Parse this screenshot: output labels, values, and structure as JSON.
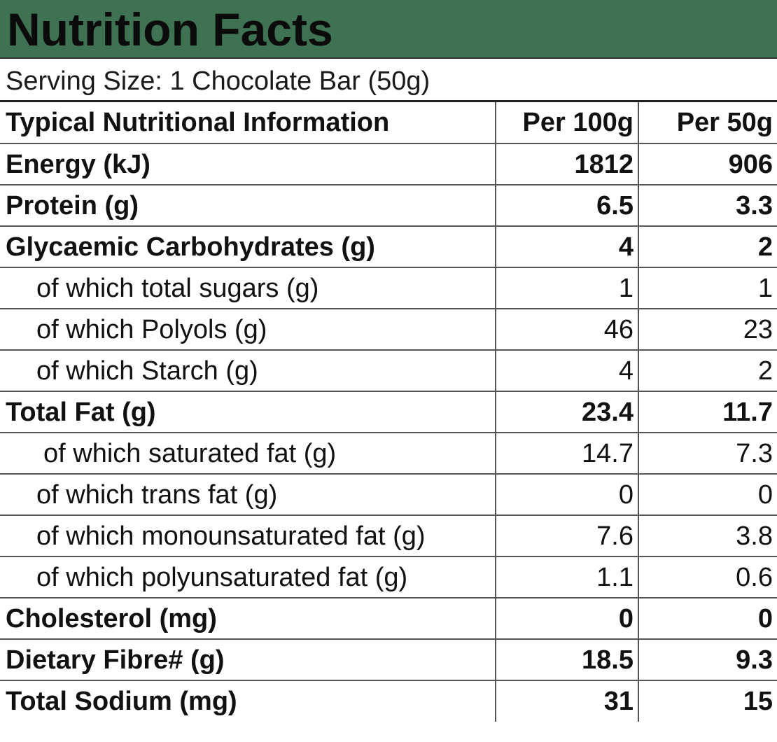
{
  "title": "Nutrition Facts",
  "serving_size": "Serving Size: 1 Chocolate Bar (50g)",
  "colors": {
    "header_background": "#3e7253",
    "text": "#111111",
    "grid_lines": "#555555"
  },
  "table": {
    "headers": [
      "Typical Nutritional Information",
      "Per 100g",
      "Per 50g"
    ],
    "rows": [
      {
        "label": "Energy (kJ)",
        "per100": "1812",
        "per50": "906",
        "style": "bold"
      },
      {
        "label": "Protein (g)",
        "per100": "6.5",
        "per50": "3.3",
        "style": "bold"
      },
      {
        "label": "Glycaemic Carbohydrates (g)",
        "per100": "4",
        "per50": "2",
        "style": "bold"
      },
      {
        "label": "of which total sugars (g)",
        "per100": "1",
        "per50": "1",
        "style": "sub"
      },
      {
        "label": "of which Polyols (g)",
        "per100": "46",
        "per50": "23",
        "style": "sub"
      },
      {
        "label": "of which Starch (g)",
        "per100": "4",
        "per50": "2",
        "style": "sub"
      },
      {
        "label": "Total Fat (g)",
        "per100": "23.4",
        "per50": "11.7",
        "style": "bold"
      },
      {
        "label": "of which saturated fat (g)",
        "per100": "14.7",
        "per50": "7.3",
        "style": "sub"
      },
      {
        "label": "of which trans fat (g)",
        "per100": "0",
        "per50": "0",
        "style": "sub"
      },
      {
        "label": "of which monounsaturated fat (g)",
        "per100": "7.6",
        "per50": "3.8",
        "style": "sub"
      },
      {
        "label": "of which polyunsaturated fat (g)",
        "per100": "1.1",
        "per50": "0.6",
        "style": "sub"
      },
      {
        "label": "Cholesterol (mg)",
        "per100": "0",
        "per50": "0",
        "style": "bold"
      },
      {
        "label": "Dietary Fibre# (g)",
        "per100": "18.5",
        "per50": "9.3",
        "style": "bold"
      },
      {
        "label": "Total Sodium (mg)",
        "per100": "31",
        "per50": "15",
        "style": "bold"
      }
    ]
  }
}
